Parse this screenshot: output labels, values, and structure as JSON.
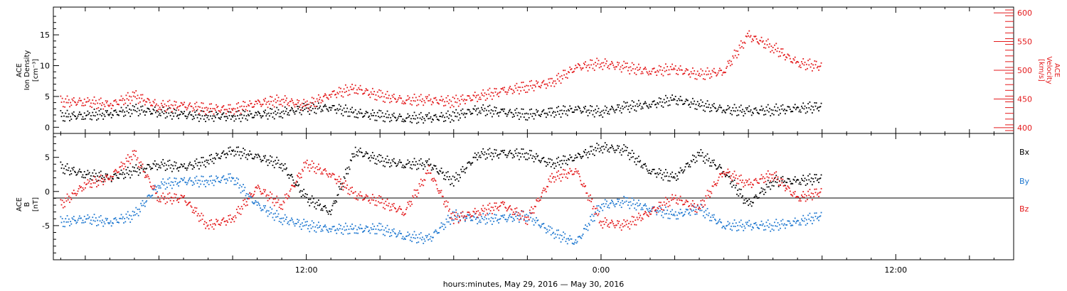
{
  "colors": {
    "black": "#000000",
    "red": "#e41a1c",
    "blue": "#1f78d0"
  },
  "xlabel": "hours:minutes, May 29, 2016 — May 30, 2016",
  "chart_data": [
    {
      "type": "scatter",
      "panel": "top",
      "xlabel": "hours:minutes, May 29, 2016 — May 30, 2016",
      "x_ticks": [
        {
          "label": "12:00",
          "hour": 12
        },
        {
          "label": "0:00",
          "hour": 24
        },
        {
          "label": "12:00",
          "hour": 36
        }
      ],
      "x_range_hours": [
        1.7,
        40.8
      ],
      "ylabel_left": [
        "ACE",
        "Ion Density",
        "[cm⁻³]"
      ],
      "ylabel_right": [
        "ACE",
        "Velocity",
        "[km/s]"
      ],
      "ylim_left": [
        -1,
        19.5
      ],
      "ylim_right": [
        390,
        610
      ],
      "yticks_left": [
        0,
        5,
        10,
        15
      ],
      "yticks_right": [
        400,
        450,
        500,
        550,
        600
      ],
      "series": [
        {
          "axis": "left",
          "color": "#000000",
          "x_hours": [
            2,
            3,
            4,
            5,
            6,
            7,
            8,
            9,
            10,
            11,
            12,
            13,
            14,
            15,
            16,
            17,
            18,
            19,
            20,
            21,
            22,
            23,
            24,
            25,
            26,
            27,
            28,
            29,
            30,
            31,
            32,
            33
          ],
          "values": [
            1.8,
            1.9,
            2.2,
            2.8,
            2.5,
            2.0,
            1.8,
            1.8,
            2.0,
            2.4,
            3.0,
            3.2,
            2.3,
            1.8,
            1.5,
            1.5,
            1.8,
            2.9,
            2.4,
            2.1,
            2.4,
            2.9,
            2.5,
            3.3,
            3.7,
            4.5,
            3.6,
            2.9,
            2.6,
            2.8,
            3.0,
            3.4
          ]
        },
        {
          "axis": "right",
          "color": "#e41a1c",
          "x_hours": [
            2,
            3,
            4,
            5,
            6,
            7,
            8,
            9,
            10,
            11,
            12,
            13,
            14,
            15,
            16,
            17,
            18,
            19,
            20,
            21,
            22,
            23,
            24,
            25,
            26,
            27,
            28,
            29,
            30,
            31,
            32,
            33
          ],
          "values": [
            445,
            445,
            440,
            455,
            438,
            438,
            433,
            432,
            442,
            448,
            438,
            458,
            468,
            455,
            448,
            448,
            445,
            455,
            463,
            472,
            478,
            505,
            512,
            505,
            498,
            502,
            492,
            498,
            560,
            540,
            512,
            507
          ]
        }
      ]
    },
    {
      "type": "scatter",
      "panel": "bottom",
      "xlabel": "hours:minutes, May 29, 2016 — May 30, 2016",
      "ylabel": [
        "ACE",
        "B",
        "[nT]"
      ],
      "ylim": [
        -10,
        8.5
      ],
      "yticks": [
        -5,
        0,
        5
      ],
      "legend": [
        "Bx",
        "By",
        "Bz"
      ],
      "series": [
        {
          "name": "Bx",
          "color": "#000000",
          "x_hours": [
            2,
            3,
            4,
            5,
            6,
            7,
            8,
            9,
            10,
            11,
            12,
            13,
            14,
            15,
            16,
            17,
            18,
            19,
            20,
            21,
            22,
            23,
            24,
            25,
            26,
            27,
            28,
            29,
            30,
            31,
            32,
            33
          ],
          "values": [
            3.5,
            2.5,
            2.0,
            3.0,
            4.0,
            3.5,
            4.5,
            6.0,
            5.0,
            4.0,
            -1.0,
            -3.0,
            6.0,
            4.5,
            4.0,
            4.0,
            1.5,
            5.5,
            5.5,
            5.5,
            4.0,
            5.0,
            6.5,
            6.0,
            3.0,
            2.0,
            5.5,
            3.0,
            -2.0,
            1.5,
            1.5,
            2.0
          ]
        },
        {
          "name": "By",
          "color": "#1f78d0",
          "x_hours": [
            2,
            3,
            4,
            5,
            6,
            7,
            8,
            9,
            10,
            11,
            12,
            13,
            14,
            15,
            16,
            17,
            18,
            19,
            20,
            21,
            22,
            23,
            24,
            25,
            26,
            27,
            28,
            29,
            30,
            31,
            32,
            33
          ],
          "values": [
            -4.5,
            -4.0,
            -4.5,
            -3.5,
            1.0,
            1.5,
            1.5,
            2.0,
            -2.0,
            -4.0,
            -5.0,
            -5.5,
            -5.5,
            -5.5,
            -6.5,
            -7.0,
            -3.5,
            -4.0,
            -4.0,
            -3.5,
            -6.0,
            -7.5,
            -2.0,
            -1.5,
            -2.5,
            -3.5,
            -2.5,
            -5.0,
            -5.0,
            -5.0,
            -4.5,
            -3.5
          ]
        },
        {
          "name": "Bz",
          "color": "#e41a1c",
          "x_hours": [
            2,
            3,
            4,
            5,
            6,
            7,
            8,
            9,
            10,
            11,
            12,
            13,
            14,
            15,
            16,
            17,
            18,
            19,
            20,
            21,
            22,
            23,
            24,
            25,
            26,
            27,
            28,
            29,
            30,
            31,
            32,
            33
          ],
          "values": [
            -2.0,
            1.0,
            2.0,
            5.5,
            -1.0,
            -1.0,
            -5.0,
            -4.0,
            0.5,
            -2.0,
            4.0,
            2.5,
            -0.5,
            -1.5,
            -3.0,
            3.0,
            -4.0,
            -3.0,
            -2.0,
            -4.0,
            2.0,
            3.0,
            -4.5,
            -5.0,
            -3.0,
            -1.0,
            -2.5,
            3.0,
            1.0,
            2.5,
            -1.0,
            0.0
          ]
        }
      ]
    }
  ]
}
